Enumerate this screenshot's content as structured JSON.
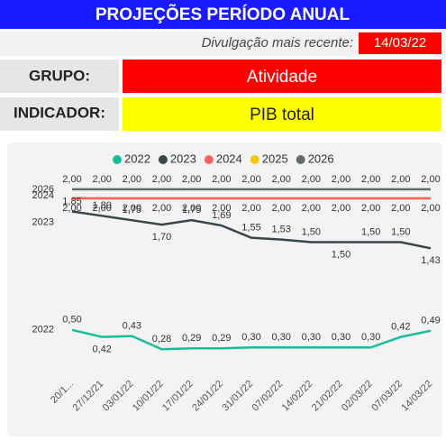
{
  "header": {
    "title": "PROJEÇÕES PERÍODO ANUAL",
    "release_label": "Divulgação mais recente:",
    "release_date": "14/03/22"
  },
  "filters": {
    "group_label": "GRUPO:",
    "group_value": "Atividade",
    "indicator_label": "INDICADOR:",
    "indicator_value": "PIB total"
  },
  "chart_data": {
    "type": "line",
    "categories": [
      "20/1...",
      "27/12/21",
      "03/01/22",
      "10/01/22",
      "17/01/22",
      "24/01/22",
      "31/01/22",
      "07/02/22",
      "14/02/22",
      "21/02/22",
      "02/03/22",
      "07/03/22",
      "14/03/22"
    ],
    "ylim": [
      0.2,
      2.05
    ],
    "legend": "top",
    "series": [
      {
        "name": "2022",
        "color": "#1abc9c",
        "values": [
          0.5,
          0.42,
          0.43,
          0.28,
          0.29,
          0.29,
          0.3,
          0.3,
          0.3,
          0.3,
          0.3,
          0.42,
          0.49
        ],
        "value_labels": [
          "0,50",
          "0,42",
          "0,43",
          "0,28",
          "0,29",
          "0,29",
          "0,30",
          "0,30",
          "0,30",
          "0,30",
          "0,30",
          "0,42",
          "0,49"
        ]
      },
      {
        "name": "2023",
        "color": "#374649",
        "values": [
          1.85,
          1.8,
          1.75,
          1.7,
          1.75,
          1.69,
          1.55,
          1.53,
          1.5,
          1.5,
          1.5,
          1.5,
          1.43
        ],
        "value_labels": [
          "1,85",
          "1,80",
          "1,75",
          "1,70",
          "1,75",
          "1,69",
          "1,55",
          "1,53",
          "1,50",
          "1,50",
          "1,50",
          "1,50",
          "1,43"
        ]
      },
      {
        "name": "2024",
        "color": "#fd625e",
        "values": [
          2.0,
          2.0,
          2.0,
          2.0,
          2.0,
          2.0,
          2.0,
          2.0,
          2.0,
          2.0,
          2.0,
          2.0,
          2.0
        ],
        "value_labels": [
          "2,00",
          "2,00",
          "2,00",
          "2,00",
          "2,00",
          "2,00",
          "2,00",
          "2,00",
          "2,00",
          "2,00",
          "2,00",
          "2,00",
          "2,00"
        ]
      },
      {
        "name": "2025",
        "color": "#f2c80f",
        "values": [
          2.0,
          2.0,
          2.0,
          2.0,
          2.0,
          2.0,
          2.0,
          2.0,
          2.0,
          2.0,
          2.0,
          2.0,
          2.0
        ]
      },
      {
        "name": "2026",
        "color": "#5f6b6d",
        "values": [
          2.0,
          2.0,
          2.0,
          2.0,
          2.0,
          2.0,
          2.0,
          2.0,
          2.0,
          2.0,
          2.0,
          2.0,
          2.0
        ],
        "value_labels": [
          "2,00",
          "2,00",
          "2,00",
          "2,00",
          "2,00",
          "2,00",
          "2,00",
          "2,00",
          "2,00",
          "2,00",
          "2,00",
          "2,00",
          "2,00"
        ]
      }
    ]
  }
}
